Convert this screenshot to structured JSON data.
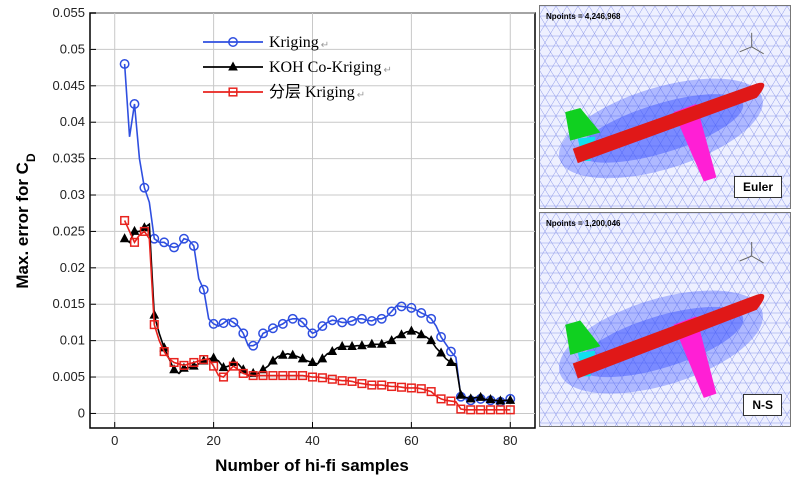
{
  "chart_data": {
    "type": "line",
    "title": "",
    "xlabel": "Number of hi-fi samples",
    "ylabel_main": "Max. error for C",
    "ylabel_sub": "D",
    "xlim": [
      -5,
      85
    ],
    "ylim": [
      -0.002,
      0.055
    ],
    "xticks": [
      "0",
      "20",
      "40",
      "60",
      "80"
    ],
    "yticks": [
      "0",
      "0.005",
      "0.01",
      "0.015",
      "0.02",
      "0.025",
      "0.03",
      "0.035",
      "0.04",
      "0.045",
      "0.05",
      "0.055"
    ],
    "grid": true,
    "legend_position": "top-center",
    "series": [
      {
        "name": "Kriging",
        "color": "#2f4fe0",
        "marker": "circle",
        "x": [
          2,
          3,
          4,
          5,
          6,
          7,
          8,
          9,
          10,
          11,
          12,
          13,
          14,
          15,
          16,
          17,
          18,
          19,
          20,
          21,
          22,
          23,
          24,
          25,
          26,
          27,
          28,
          29,
          30,
          31,
          32,
          33,
          34,
          35,
          36,
          37,
          38,
          39,
          40,
          41,
          42,
          43,
          44,
          45,
          46,
          47,
          48,
          49,
          50,
          51,
          52,
          53,
          54,
          55,
          56,
          57,
          58,
          59,
          60,
          61,
          62,
          63,
          64,
          65,
          66,
          67,
          68,
          69,
          70,
          71,
          72,
          73,
          74,
          75,
          76,
          77,
          78,
          79,
          80
        ],
        "y": [
          0.048,
          0.038,
          0.0425,
          0.035,
          0.031,
          0.029,
          0.024,
          0.0235,
          0.0235,
          0.023,
          0.0228,
          0.023,
          0.024,
          0.0238,
          0.023,
          0.0185,
          0.017,
          0.013,
          0.0123,
          0.012,
          0.0124,
          0.0129,
          0.0125,
          0.012,
          0.011,
          0.0093,
          0.0093,
          0.0097,
          0.011,
          0.0113,
          0.0117,
          0.012,
          0.0123,
          0.0128,
          0.013,
          0.013,
          0.0125,
          0.0117,
          0.011,
          0.0113,
          0.012,
          0.0125,
          0.0128,
          0.0127,
          0.0125,
          0.0125,
          0.0127,
          0.013,
          0.013,
          0.0128,
          0.0127,
          0.013,
          0.013,
          0.0133,
          0.014,
          0.0148,
          0.0147,
          0.0146,
          0.0145,
          0.0142,
          0.0138,
          0.0135,
          0.013,
          0.012,
          0.0105,
          0.0095,
          0.0085,
          0.0077,
          0.0023,
          0.002,
          0.0018,
          0.002,
          0.002,
          0.0018,
          0.0018,
          0.0017,
          0.0016,
          0.0017,
          0.002
        ]
      },
      {
        "name": "KOH Co-Kriging",
        "color": "#000000",
        "marker": "triangle",
        "x": [
          2,
          3,
          4,
          5,
          6,
          7,
          8,
          9,
          10,
          11,
          12,
          13,
          14,
          15,
          16,
          17,
          18,
          19,
          20,
          21,
          22,
          23,
          24,
          25,
          26,
          27,
          28,
          29,
          30,
          31,
          32,
          33,
          34,
          35,
          36,
          37,
          38,
          39,
          40,
          41,
          42,
          43,
          44,
          45,
          46,
          47,
          48,
          49,
          50,
          51,
          52,
          53,
          54,
          55,
          56,
          57,
          58,
          59,
          60,
          61,
          62,
          63,
          64,
          65,
          66,
          67,
          68,
          69,
          70,
          71,
          72,
          73,
          74,
          75,
          76,
          77,
          78,
          79,
          80
        ],
        "y": [
          0.024,
          0.0235,
          0.025,
          0.025,
          0.0255,
          0.026,
          0.0135,
          0.011,
          0.009,
          0.0075,
          0.006,
          0.0055,
          0.0062,
          0.0063,
          0.0065,
          0.0068,
          0.0072,
          0.0075,
          0.0076,
          0.0072,
          0.0063,
          0.0065,
          0.007,
          0.0068,
          0.006,
          0.0052,
          0.0055,
          0.0055,
          0.006,
          0.0065,
          0.0072,
          0.0078,
          0.008,
          0.0082,
          0.008,
          0.0078,
          0.0075,
          0.0072,
          0.007,
          0.0068,
          0.0075,
          0.0082,
          0.0085,
          0.009,
          0.0092,
          0.0092,
          0.0092,
          0.0093,
          0.0093,
          0.0093,
          0.0095,
          0.0095,
          0.0095,
          0.0098,
          0.01,
          0.0105,
          0.0108,
          0.0112,
          0.0113,
          0.0112,
          0.0108,
          0.0105,
          0.01,
          0.009,
          0.0083,
          0.0075,
          0.007,
          0.0068,
          0.0025,
          0.0022,
          0.002,
          0.0022,
          0.0022,
          0.0019,
          0.0019,
          0.0018,
          0.0017,
          0.0018,
          0.0018
        ]
      },
      {
        "name": "分层 Kriging",
        "color": "#e8231e",
        "marker": "square",
        "x": [
          2,
          3,
          4,
          5,
          6,
          7,
          8,
          9,
          10,
          11,
          12,
          13,
          14,
          15,
          16,
          17,
          18,
          19,
          20,
          21,
          22,
          23,
          24,
          25,
          26,
          27,
          28,
          29,
          30,
          31,
          32,
          33,
          34,
          35,
          36,
          37,
          38,
          39,
          40,
          41,
          42,
          43,
          44,
          45,
          46,
          47,
          48,
          49,
          50,
          51,
          52,
          53,
          54,
          55,
          56,
          57,
          58,
          59,
          60,
          61,
          62,
          63,
          64,
          65,
          66,
          67,
          68,
          69,
          70,
          71,
          72,
          73,
          74,
          75,
          76,
          77,
          78,
          79,
          80
        ],
        "y": [
          0.0265,
          0.025,
          0.0235,
          0.0245,
          0.025,
          0.024,
          0.0122,
          0.01,
          0.0085,
          0.0075,
          0.007,
          0.0068,
          0.0066,
          0.0068,
          0.007,
          0.0072,
          0.0074,
          0.0075,
          0.0065,
          0.0052,
          0.005,
          0.0058,
          0.0065,
          0.006,
          0.0055,
          0.0053,
          0.0052,
          0.0052,
          0.0052,
          0.0052,
          0.0052,
          0.0052,
          0.0052,
          0.0052,
          0.0052,
          0.0052,
          0.0052,
          0.0051,
          0.005,
          0.005,
          0.0049,
          0.0048,
          0.0047,
          0.0046,
          0.0045,
          0.0045,
          0.0044,
          0.0042,
          0.0041,
          0.004,
          0.0039,
          0.0039,
          0.0039,
          0.0038,
          0.0037,
          0.0037,
          0.0036,
          0.0035,
          0.0035,
          0.0035,
          0.0034,
          0.0032,
          0.003,
          0.0024,
          0.002,
          0.0018,
          0.0017,
          0.0016,
          0.0006,
          0.0005,
          0.0005,
          0.0005,
          0.0005,
          0.0005,
          0.0005,
          0.0005,
          0.0005,
          0.0005,
          0.0005
        ]
      }
    ]
  },
  "side_panels": [
    {
      "npoints": "Npoints = 4,246,968",
      "tag": "Euler"
    },
    {
      "npoints": "Npoints = 1,200,046",
      "tag": "N-S"
    }
  ],
  "panel_colors": {
    "mesh_bg": "#eef0ff",
    "mesh_line": "#8a96e8",
    "near_field": "#3a52ff",
    "fuselage": "#e01818",
    "wing": "#ff1fd5",
    "v_tail": "#10d020",
    "h_tail": "#10e0f0"
  }
}
